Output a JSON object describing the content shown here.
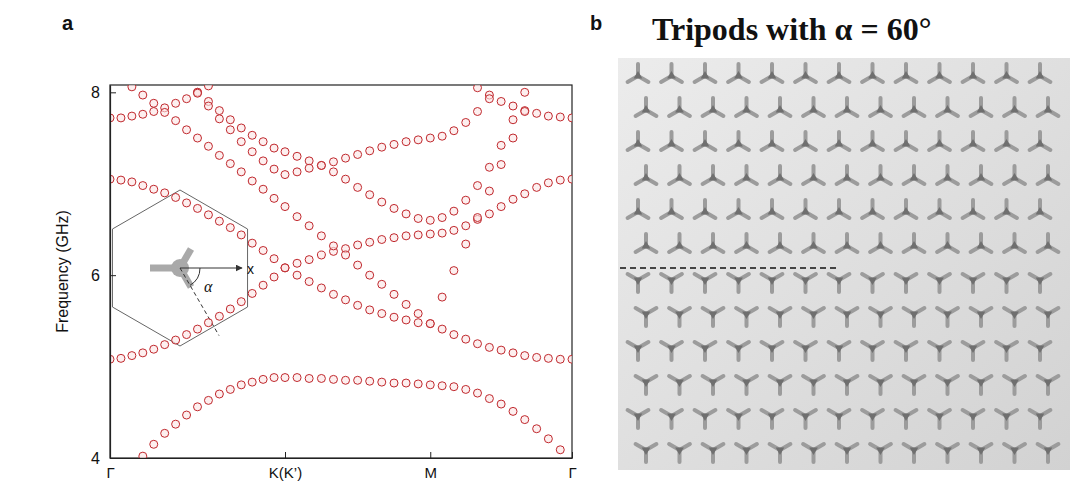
{
  "chart_data": {
    "type": "scatter",
    "panel_label": "a",
    "ylabel": "Frequency (GHz)",
    "annotations": [
      "x",
      "α"
    ],
    "marker": "circle",
    "color": "#c0282d",
    "xlim": [
      0,
      2.64
    ],
    "xticks": [
      {
        "value": 0,
        "label": "Γ"
      },
      {
        "value": 1,
        "label": "K(K’)"
      },
      {
        "value": 1.83,
        "label": "M"
      },
      {
        "value": 2.64,
        "label": "Γ"
      }
    ],
    "ylim": [
      4,
      8.08
    ],
    "yticks": [
      4,
      6,
      8
    ],
    "x": [
      0,
      0.0625,
      0.125,
      0.1875,
      0.25,
      0.3125,
      0.375,
      0.4375,
      0.5,
      0.5625,
      0.625,
      0.6875,
      0.75,
      0.8125,
      0.875,
      0.9375,
      1,
      1.069,
      1.138,
      1.208,
      1.277,
      1.346,
      1.415,
      1.484,
      1.553,
      1.623,
      1.692,
      1.761,
      1.83,
      1.898,
      1.965,
      2.033,
      2.1,
      2.168,
      2.235,
      2.303,
      2.37,
      2.438,
      2.505,
      2.573,
      2.64
    ],
    "series": [
      {
        "values": [
          null,
          null,
          null,
          4.02,
          4.15,
          4.27,
          4.37,
          4.47,
          4.56,
          4.63,
          4.7,
          4.75,
          4.8,
          4.83,
          4.86,
          4.88,
          4.88,
          4.88,
          4.87,
          4.87,
          4.86,
          4.85,
          4.85,
          4.84,
          4.83,
          4.82,
          4.82,
          4.81,
          4.8,
          4.79,
          4.78,
          4.75,
          4.71,
          4.65,
          4.59,
          4.51,
          4.42,
          4.32,
          4.21,
          4.09,
          null
        ]
      },
      {
        "values": [
          5.08,
          5.09,
          5.12,
          5.15,
          5.19,
          5.24,
          5.29,
          5.35,
          5.41,
          5.48,
          5.55,
          5.63,
          5.71,
          5.8,
          5.89,
          5.98,
          6.08,
          6.0,
          5.93,
          5.86,
          5.79,
          5.73,
          5.67,
          5.62,
          5.58,
          5.54,
          5.51,
          5.48,
          5.47,
          5.41,
          5.35,
          5.3,
          5.25,
          5.21,
          5.18,
          5.15,
          5.12,
          5.1,
          5.09,
          5.08,
          5.08
        ]
      },
      {
        "values": [
          7.05,
          7.04,
          7.02,
          6.98,
          6.94,
          6.9,
          6.85,
          6.79,
          6.73,
          6.66,
          6.59,
          6.52,
          6.44,
          6.35,
          6.27,
          6.18,
          6.08,
          6.13,
          6.17,
          6.22,
          6.26,
          6.29,
          6.33,
          6.36,
          6.39,
          6.41,
          6.43,
          6.44,
          6.45,
          6.46,
          6.49,
          6.54,
          6.61,
          6.67,
          6.75,
          6.83,
          6.89,
          6.96,
          7.01,
          7.04,
          7.05
        ]
      },
      {
        "values": [
          7.72,
          7.72,
          7.74,
          7.76,
          7.79,
          7.83,
          7.88,
          7.93,
          8.0,
          8.07,
          null,
          null,
          null,
          null,
          null,
          null,
          null,
          null,
          null,
          null,
          null,
          null,
          null,
          null,
          null,
          null,
          null,
          null,
          null,
          null,
          null,
          null,
          8.05,
          7.97,
          7.9,
          7.85,
          7.8,
          7.77,
          7.74,
          7.73,
          7.72
        ]
      },
      {
        "values": [
          null,
          null,
          null,
          null,
          null,
          null,
          null,
          null,
          8.0,
          7.9,
          7.8,
          7.7,
          7.61,
          7.53,
          7.46,
          7.39,
          7.35,
          7.3,
          7.25,
          7.2,
          7.13,
          7.05,
          6.96,
          6.88,
          6.8,
          6.73,
          6.67,
          6.62,
          6.6,
          6.63,
          6.7,
          6.82,
          6.98,
          7.18,
          7.42,
          7.7,
          8.0,
          null,
          null,
          null,
          null
        ]
      },
      {
        "values": [
          null,
          null,
          null,
          null,
          null,
          null,
          null,
          null,
          7.99,
          7.85,
          7.71,
          7.59,
          7.46,
          7.35,
          7.25,
          7.16,
          7.1,
          7.13,
          7.17,
          7.2,
          7.24,
          7.28,
          7.32,
          7.36,
          7.4,
          7.43,
          7.46,
          7.48,
          7.5,
          7.52,
          7.58,
          7.67,
          7.79,
          7.93,
          null,
          null,
          null,
          null,
          null,
          null,
          null
        ]
      },
      {
        "values": [
          null,
          null,
          8.06,
          7.97,
          7.88,
          7.78,
          7.69,
          7.59,
          7.5,
          7.41,
          7.31,
          7.22,
          7.13,
          7.03,
          6.94,
          6.84,
          6.75,
          6.64,
          6.54,
          6.43,
          6.32,
          6.22,
          6.11,
          6.0,
          5.9,
          5.79,
          5.68,
          5.58,
          5.47,
          5.76,
          6.05,
          6.34,
          6.63,
          6.92,
          7.21,
          7.5,
          7.79,
          null,
          null,
          null,
          null
        ]
      }
    ]
  },
  "photo": {
    "panel_label": "b",
    "title": "Tripods with α = 60°"
  }
}
